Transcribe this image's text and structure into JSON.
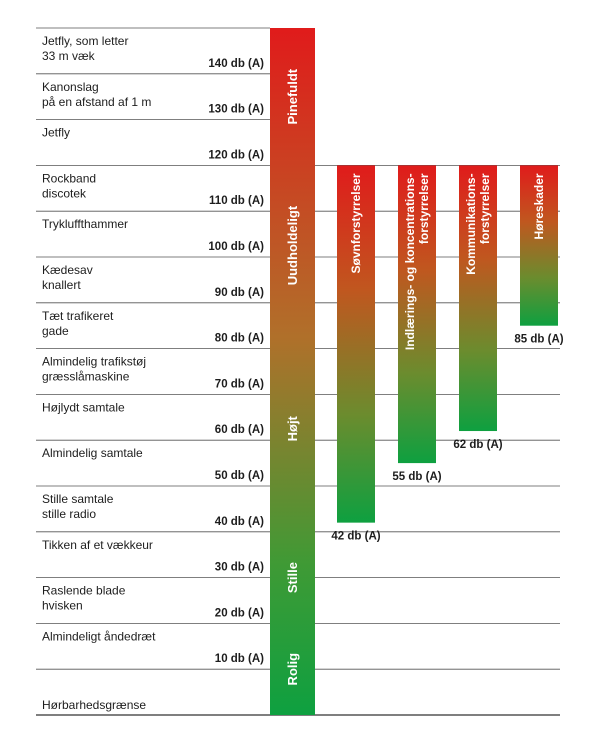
{
  "chart_data": {
    "type": "bar",
    "levels": [
      {
        "label": [
          "Jetfly, som letter",
          "33 m væk"
        ],
        "db": "140 db (A)"
      },
      {
        "label": [
          "Kanonslag",
          "på en afstand af 1 m"
        ],
        "db": "130 db (A)"
      },
      {
        "label": [
          "Jetfly"
        ],
        "db": "120 db (A)"
      },
      {
        "label": [
          "Rockband",
          "discotek"
        ],
        "db": "110 db (A)"
      },
      {
        "label": [
          "Trykluffthammer"
        ],
        "db": "100 db (A)"
      },
      {
        "label": [
          "Kædesav",
          "knallert"
        ],
        "db": "90 db (A)"
      },
      {
        "label": [
          "Tæt trafikeret",
          "gade"
        ],
        "db": "80 db (A)"
      },
      {
        "label": [
          "Almindelig trafikstøj",
          "græsslåmaskine"
        ],
        "db": "70 db (A)"
      },
      {
        "label": [
          "Højlydt samtale"
        ],
        "db": "60 db (A)"
      },
      {
        "label": [
          "Almindelig samtale"
        ],
        "db": "50 db (A)"
      },
      {
        "label": [
          "Stille samtale",
          "stille radio"
        ],
        "db": "40 db (A)"
      },
      {
        "label": [
          "Tikken af et vækkeur"
        ],
        "db": "30 db (A)"
      },
      {
        "label": [
          "Raslende blade",
          "hvisken"
        ],
        "db": "20 db (A)"
      },
      {
        "label": [
          "Almindeligt åndedræt"
        ],
        "db": "10 db (A)"
      }
    ],
    "baseline_label": "Hørbarhedsgrænse",
    "scale_bar": {
      "range": [
        0,
        150
      ],
      "zones": [
        {
          "label": "Pinefuldt",
          "from": 120,
          "to": 150
        },
        {
          "label": "Uudholdeligt",
          "from": 85,
          "to": 120
        },
        {
          "label": "Højt",
          "from": 40,
          "to": 85
        },
        {
          "label": "Stille",
          "from": 20,
          "to": 40
        },
        {
          "label": "Rolig",
          "from": 0,
          "to": 20
        }
      ]
    },
    "series": [
      {
        "name": [
          "Søvnforstyrrelser"
        ],
        "threshold": 42,
        "threshold_label": "42 db (A)"
      },
      {
        "name": [
          "Indlærings- og koncentrations-",
          "forstyrrelser"
        ],
        "threshold": 55,
        "threshold_label": "55 db (A)"
      },
      {
        "name": [
          "Kommunikations-",
          "forstyrrelser"
        ],
        "threshold": 62,
        "threshold_label": "62 db (A)"
      },
      {
        "name": [
          "Høreskader"
        ],
        "threshold": 85,
        "threshold_label": "85 db (A)"
      }
    ],
    "bar_top_value": 120,
    "colors": {
      "top": "#e01b1b",
      "middle": "#b0702a",
      "bottom": "#0ea040",
      "grid": "#555555"
    }
  }
}
